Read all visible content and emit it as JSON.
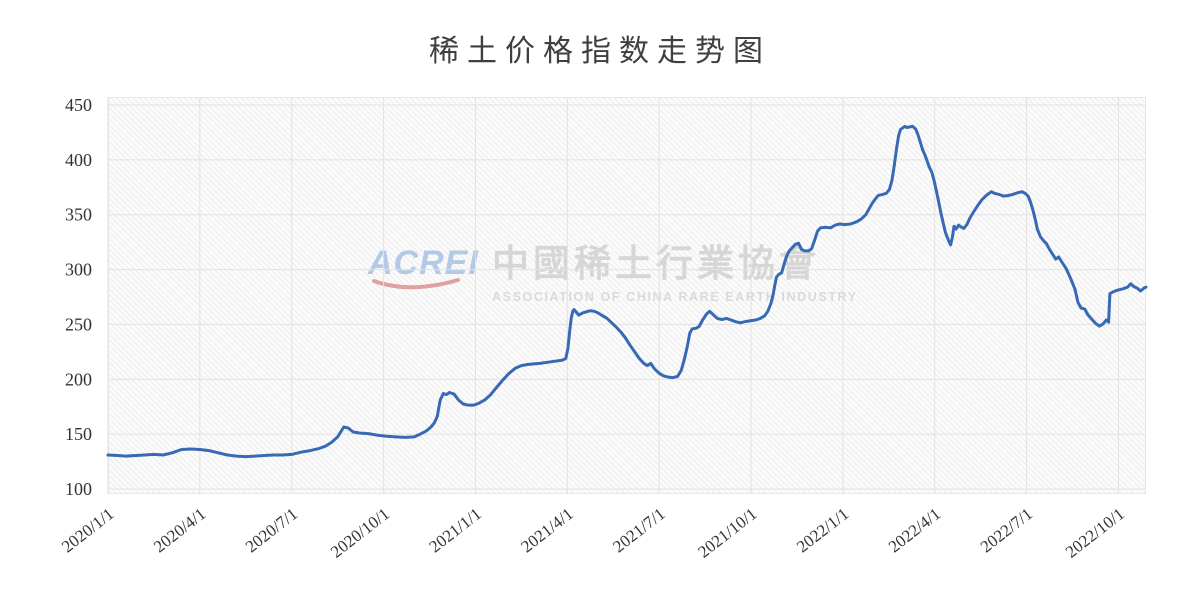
{
  "page": {
    "title": "稀土价格指数走势图"
  },
  "watermark": {
    "acrei": "ACREI",
    "cn": "中國稀土行業協會",
    "en": "ASSOCIATION OF CHINA RARE EARTH INDUSTRY"
  },
  "chart_data": {
    "type": "line",
    "title": "稀土价格指数走势图",
    "xlabel": "",
    "ylabel": "",
    "grid": true,
    "legend": "none",
    "line_color": "#3769b4",
    "grid_color": "#e2e2e2",
    "tick_color": "#333333",
    "ylim": [
      100,
      450
    ],
    "y_ticks": [
      100,
      150,
      200,
      250,
      300,
      350,
      400,
      450
    ],
    "x_tick_labels": [
      "2020/1/1",
      "2020/4/1",
      "2020/7/1",
      "2020/10/1",
      "2021/1/1",
      "2021/4/1",
      "2021/7/1",
      "2021/10/1",
      "2022/1/1",
      "2022/4/1",
      "2022/7/1",
      "2022/10/1"
    ],
    "x_tick_months": [
      0,
      3,
      6,
      9,
      12,
      15,
      18,
      21,
      24,
      27,
      30,
      33
    ],
    "xlim_months": [
      0,
      33.9
    ],
    "series": [
      {
        "name": "稀土价格指数",
        "points": [
          [
            0,
            131
          ],
          [
            0.3,
            130.5
          ],
          [
            0.6,
            130
          ],
          [
            0.9,
            130.5
          ],
          [
            1.2,
            131
          ],
          [
            1.5,
            131.5
          ],
          [
            1.8,
            131
          ],
          [
            2.1,
            133
          ],
          [
            2.4,
            136
          ],
          [
            2.7,
            136.5
          ],
          [
            3,
            136
          ],
          [
            3.3,
            135
          ],
          [
            3.6,
            133
          ],
          [
            3.9,
            131
          ],
          [
            4.2,
            130
          ],
          [
            4.5,
            129.5
          ],
          [
            4.8,
            130
          ],
          [
            5.1,
            130.5
          ],
          [
            5.4,
            131
          ],
          [
            5.7,
            131
          ],
          [
            6,
            131.5
          ],
          [
            6.3,
            133.5
          ],
          [
            6.6,
            135
          ],
          [
            6.9,
            137
          ],
          [
            7.1,
            139
          ],
          [
            7.3,
            142.5
          ],
          [
            7.5,
            147.5
          ],
          [
            7.6,
            152
          ],
          [
            7.7,
            156.5
          ],
          [
            7.85,
            155.5
          ],
          [
            8,
            152
          ],
          [
            8.2,
            151
          ],
          [
            8.5,
            150.5
          ],
          [
            8.8,
            149
          ],
          [
            9.1,
            148
          ],
          [
            9.4,
            147.5
          ],
          [
            9.7,
            147
          ],
          [
            10,
            147.5
          ],
          [
            10.2,
            150
          ],
          [
            10.4,
            153
          ],
          [
            10.55,
            156.5
          ],
          [
            10.65,
            160
          ],
          [
            10.75,
            166
          ],
          [
            10.85,
            181
          ],
          [
            10.95,
            187
          ],
          [
            11.05,
            186
          ],
          [
            11.15,
            188
          ],
          [
            11.3,
            186.5
          ],
          [
            11.45,
            181
          ],
          [
            11.6,
            177.5
          ],
          [
            11.75,
            176.5
          ],
          [
            11.95,
            176.5
          ],
          [
            12.1,
            178
          ],
          [
            12.3,
            181
          ],
          [
            12.5,
            186
          ],
          [
            12.7,
            193
          ],
          [
            12.9,
            199.5
          ],
          [
            13.1,
            205.5
          ],
          [
            13.3,
            210
          ],
          [
            13.5,
            212.5
          ],
          [
            13.7,
            213.5
          ],
          [
            13.9,
            214
          ],
          [
            14.1,
            214.5
          ],
          [
            14.35,
            215.5
          ],
          [
            14.6,
            216.5
          ],
          [
            14.85,
            217.5
          ],
          [
            14.95,
            219
          ],
          [
            15.02,
            228
          ],
          [
            15.08,
            244
          ],
          [
            15.13,
            256
          ],
          [
            15.18,
            262
          ],
          [
            15.22,
            263.5
          ],
          [
            15.3,
            261
          ],
          [
            15.38,
            258.5
          ],
          [
            15.5,
            260.5
          ],
          [
            15.62,
            261.5
          ],
          [
            15.75,
            262.5
          ],
          [
            15.88,
            262
          ],
          [
            16,
            260.5
          ],
          [
            16.15,
            258
          ],
          [
            16.3,
            255.5
          ],
          [
            16.45,
            251.5
          ],
          [
            16.6,
            247.5
          ],
          [
            16.75,
            243
          ],
          [
            16.9,
            237.5
          ],
          [
            17.05,
            231
          ],
          [
            17.2,
            225
          ],
          [
            17.35,
            219
          ],
          [
            17.5,
            214.5
          ],
          [
            17.62,
            212.5
          ],
          [
            17.72,
            214.5
          ],
          [
            17.85,
            209.5
          ],
          [
            18,
            205.5
          ],
          [
            18.15,
            203
          ],
          [
            18.3,
            202
          ],
          [
            18.45,
            201.5
          ],
          [
            18.6,
            202.5
          ],
          [
            18.72,
            208
          ],
          [
            18.82,
            218
          ],
          [
            18.92,
            230
          ],
          [
            19,
            242
          ],
          [
            19.08,
            246
          ],
          [
            19.2,
            246.5
          ],
          [
            19.3,
            248
          ],
          [
            19.42,
            254
          ],
          [
            19.55,
            259.5
          ],
          [
            19.65,
            262
          ],
          [
            19.78,
            258.5
          ],
          [
            19.9,
            255.5
          ],
          [
            20.05,
            254.5
          ],
          [
            20.2,
            255.5
          ],
          [
            20.35,
            254
          ],
          [
            20.5,
            252.5
          ],
          [
            20.65,
            251.5
          ],
          [
            20.8,
            252.5
          ],
          [
            21,
            253.5
          ],
          [
            21.15,
            254
          ],
          [
            21.3,
            255.5
          ],
          [
            21.45,
            258
          ],
          [
            21.55,
            262
          ],
          [
            21.65,
            269
          ],
          [
            21.72,
            277
          ],
          [
            21.78,
            286
          ],
          [
            21.83,
            293
          ],
          [
            21.9,
            295.5
          ],
          [
            22,
            297
          ],
          [
            22.08,
            305
          ],
          [
            22.16,
            312
          ],
          [
            22.25,
            317
          ],
          [
            22.35,
            320
          ],
          [
            22.45,
            323
          ],
          [
            22.55,
            324
          ],
          [
            22.65,
            318.5
          ],
          [
            22.75,
            317
          ],
          [
            22.88,
            317
          ],
          [
            22.98,
            319
          ],
          [
            23.08,
            327
          ],
          [
            23.17,
            335
          ],
          [
            23.27,
            338
          ],
          [
            23.45,
            338.5
          ],
          [
            23.6,
            338
          ],
          [
            23.75,
            340.5
          ],
          [
            23.9,
            341.5
          ],
          [
            24.05,
            341
          ],
          [
            24.25,
            341.5
          ],
          [
            24.45,
            343.5
          ],
          [
            24.6,
            346
          ],
          [
            24.75,
            350
          ],
          [
            24.85,
            355
          ],
          [
            24.95,
            360
          ],
          [
            25.05,
            364
          ],
          [
            25.15,
            367.5
          ],
          [
            25.3,
            368.5
          ],
          [
            25.42,
            369.5
          ],
          [
            25.52,
            373
          ],
          [
            25.6,
            381
          ],
          [
            25.68,
            395
          ],
          [
            25.75,
            410
          ],
          [
            25.82,
            422
          ],
          [
            25.88,
            427.5
          ],
          [
            25.95,
            429
          ],
          [
            26.02,
            430.5
          ],
          [
            26.1,
            429.5
          ],
          [
            26.18,
            430
          ],
          [
            26.28,
            430.5
          ],
          [
            26.38,
            428
          ],
          [
            26.45,
            423
          ],
          [
            26.52,
            417
          ],
          [
            26.6,
            409.5
          ],
          [
            26.68,
            404.5
          ],
          [
            26.75,
            399
          ],
          [
            26.82,
            393.5
          ],
          [
            26.9,
            389
          ],
          [
            26.98,
            381
          ],
          [
            27.05,
            372
          ],
          [
            27.12,
            363
          ],
          [
            27.2,
            352
          ],
          [
            27.28,
            342
          ],
          [
            27.35,
            334
          ],
          [
            27.45,
            326.5
          ],
          [
            27.52,
            322.5
          ],
          [
            27.58,
            330
          ],
          [
            27.63,
            339.5
          ],
          [
            27.7,
            337
          ],
          [
            27.78,
            340.5
          ],
          [
            27.85,
            339
          ],
          [
            27.95,
            337.5
          ],
          [
            28.05,
            341
          ],
          [
            28.15,
            347
          ],
          [
            28.28,
            353
          ],
          [
            28.42,
            359
          ],
          [
            28.55,
            364
          ],
          [
            28.7,
            368
          ],
          [
            28.85,
            371
          ],
          [
            28.95,
            369.5
          ],
          [
            29.1,
            368.5
          ],
          [
            29.25,
            367
          ],
          [
            29.4,
            367.5
          ],
          [
            29.55,
            368.5
          ],
          [
            29.7,
            370
          ],
          [
            29.85,
            371
          ],
          [
            29.95,
            369.5
          ],
          [
            30.05,
            367
          ],
          [
            30.12,
            362
          ],
          [
            30.2,
            355
          ],
          [
            30.28,
            346
          ],
          [
            30.35,
            337
          ],
          [
            30.45,
            330
          ],
          [
            30.55,
            326.5
          ],
          [
            30.65,
            323.5
          ],
          [
            30.75,
            318.5
          ],
          [
            30.85,
            314
          ],
          [
            30.95,
            309.5
          ],
          [
            31.05,
            311.5
          ],
          [
            31.15,
            307
          ],
          [
            31.3,
            300.5
          ],
          [
            31.45,
            291
          ],
          [
            31.58,
            282
          ],
          [
            31.68,
            270
          ],
          [
            31.78,
            265
          ],
          [
            31.9,
            264
          ],
          [
            32,
            259
          ],
          [
            32.12,
            255
          ],
          [
            32.25,
            251
          ],
          [
            32.38,
            248.5
          ],
          [
            32.5,
            250.5
          ],
          [
            32.6,
            254
          ],
          [
            32.68,
            252
          ],
          [
            32.72,
            278
          ],
          [
            32.85,
            280
          ],
          [
            33,
            281.5
          ],
          [
            33.15,
            282.5
          ],
          [
            33.3,
            284
          ],
          [
            33.4,
            287
          ],
          [
            33.5,
            284.5
          ],
          [
            33.62,
            283
          ],
          [
            33.72,
            280.5
          ],
          [
            33.85,
            283.5
          ],
          [
            33.9,
            284
          ]
        ]
      }
    ]
  }
}
